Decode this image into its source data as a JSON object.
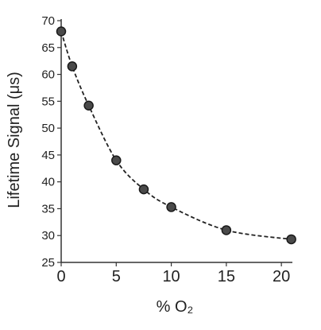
{
  "chart_data": {
    "type": "scatter",
    "xlabel": "% O₂",
    "ylabel": "Lifetime Signal (μs)",
    "xlim": [
      0,
      21
    ],
    "ylim": [
      25,
      70
    ],
    "x_ticks": [
      0,
      5,
      10,
      15,
      20
    ],
    "y_ticks": [
      25,
      30,
      35,
      40,
      45,
      50,
      55,
      60,
      65,
      70
    ],
    "grid": false,
    "series": [
      {
        "x": [
          0,
          1,
          2.5,
          5,
          7.5,
          10,
          15,
          20.9
        ],
        "y": [
          68,
          61.5,
          54.2,
          44,
          38.6,
          35.3,
          31,
          29.3
        ],
        "line_style": "dashed",
        "marker_color": "#4a4a4a"
      }
    ]
  }
}
